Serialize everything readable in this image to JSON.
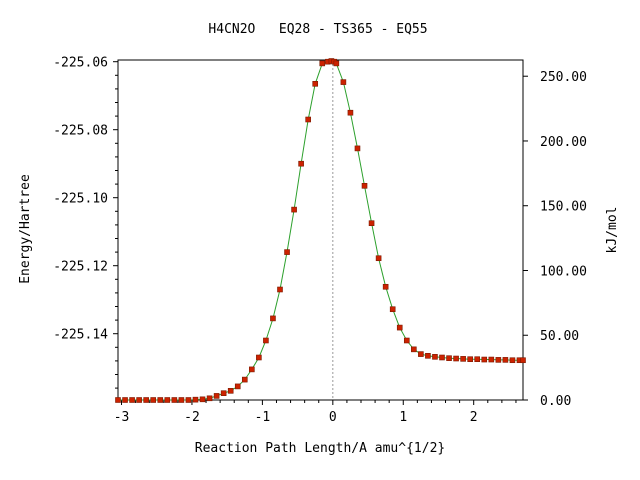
{
  "chart_data": {
    "type": "line",
    "title": "H4CN2O   EQ28 - TS365 - EQ55",
    "xlabel": "Reaction Path Length/A amu^{1/2}",
    "ylabel": "Energy/Hartree",
    "y2label": "kJ/mol",
    "xlim": [
      -3.05,
      2.7
    ],
    "ylim": [
      -225.1595,
      -225.0595
    ],
    "y2lim": [
      0,
      262.52
    ],
    "x_ticks": [
      -3,
      -2,
      -1,
      0,
      1,
      2
    ],
    "x_tick_labels": [
      "-3",
      "-2",
      "-1",
      "0",
      "1",
      "2"
    ],
    "y_ticks": [
      -225.06,
      -225.08,
      -225.1,
      -225.12,
      -225.14
    ],
    "y_tick_labels": [
      "-225.06",
      "-225.08",
      "-225.10",
      "-225.12",
      "-225.14"
    ],
    "y2_ticks": [
      0,
      50,
      100,
      150,
      200,
      250
    ],
    "y2_tick_labels": [
      "0.00",
      "50.00",
      "100.00",
      "150.00",
      "200.00",
      "250.00"
    ],
    "ts_x": 0,
    "line_color": "#2ca02c",
    "marker_color": "#cc2200",
    "ts_line_color": "#999999",
    "series": [
      {
        "x": [
          -3.05,
          -2.95,
          -2.85,
          -2.75,
          -2.65,
          -2.55,
          -2.45,
          -2.35,
          -2.25,
          -2.15,
          -2.05,
          -1.95,
          -1.85,
          -1.75,
          -1.65,
          -1.55,
          -1.45,
          -1.35,
          -1.25,
          -1.15,
          -1.05,
          -0.95,
          -0.85,
          -0.75,
          -0.65,
          -0.55,
          -0.45,
          -0.35,
          -0.25,
          -0.15,
          -0.07,
          -0.02,
          0.02,
          0.05,
          0.15,
          0.25,
          0.35,
          0.45,
          0.55,
          0.65,
          0.75,
          0.85,
          0.95,
          1.05,
          1.15,
          1.25,
          1.35,
          1.45,
          1.55,
          1.65,
          1.75,
          1.85,
          1.95,
          2.05,
          2.15,
          2.25,
          2.35,
          2.45,
          2.55,
          2.65,
          2.7
        ],
        "y": [
          -225.1595,
          -225.1595,
          -225.1595,
          -225.1595,
          -225.1595,
          -225.1595,
          -225.1595,
          -225.1595,
          -225.1595,
          -225.1595,
          -225.1595,
          -225.1594,
          -225.1593,
          -225.159,
          -225.1583,
          -225.1575,
          -225.1568,
          -225.1555,
          -225.1535,
          -225.1505,
          -225.147,
          -225.142,
          -225.1355,
          -225.127,
          -225.116,
          -225.1035,
          -225.09,
          -225.077,
          -225.0665,
          -225.0605,
          -225.06,
          -225.0598,
          -225.06,
          -225.0605,
          -225.066,
          -225.075,
          -225.0855,
          -225.0965,
          -225.1075,
          -225.1178,
          -225.1262,
          -225.1328,
          -225.1382,
          -225.142,
          -225.1446,
          -225.146,
          -225.1465,
          -225.1468,
          -225.147,
          -225.1472,
          -225.1473,
          -225.1474,
          -225.1475,
          -225.1475,
          -225.1476,
          -225.1476,
          -225.1477,
          -225.1477,
          -225.1478,
          -225.1478,
          -225.1478
        ]
      }
    ]
  }
}
